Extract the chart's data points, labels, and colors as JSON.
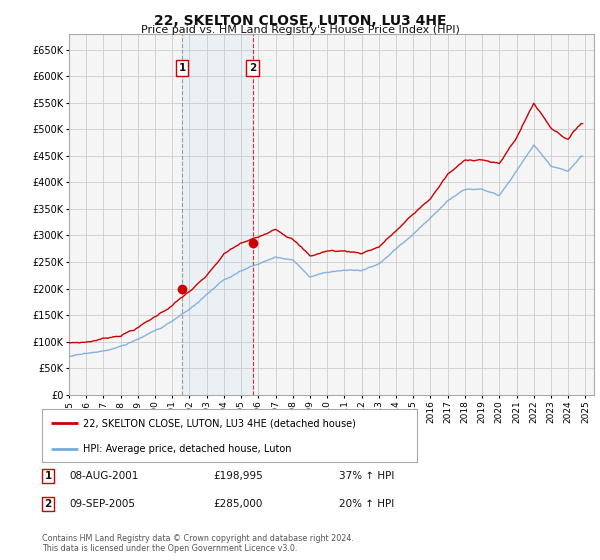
{
  "title": "22, SKELTON CLOSE, LUTON, LU3 4HE",
  "subtitle": "Price paid vs. HM Land Registry's House Price Index (HPI)",
  "hpi_color": "#7aaadd",
  "price_color": "#cc0000",
  "background_color": "#ffffff",
  "grid_color": "#cccccc",
  "plot_bg_color": "#f5f5f5",
  "ylim": [
    0,
    680000
  ],
  "yticks": [
    0,
    50000,
    100000,
    150000,
    200000,
    250000,
    300000,
    350000,
    400000,
    450000,
    500000,
    550000,
    600000,
    650000
  ],
  "ytick_labels": [
    "£0",
    "£50K",
    "£100K",
    "£150K",
    "£200K",
    "£250K",
    "£300K",
    "£350K",
    "£400K",
    "£450K",
    "£500K",
    "£550K",
    "£600K",
    "£650K"
  ],
  "xlim_start": 1995.0,
  "xlim_end": 2025.5,
  "xtick_years": [
    1995,
    1996,
    1997,
    1998,
    1999,
    2000,
    2001,
    2002,
    2003,
    2004,
    2005,
    2006,
    2007,
    2008,
    2009,
    2010,
    2011,
    2012,
    2013,
    2014,
    2015,
    2016,
    2017,
    2018,
    2019,
    2020,
    2021,
    2022,
    2023,
    2024,
    2025
  ],
  "sale1_x": 2001.58,
  "sale1_y": 198995,
  "sale1_label": "1",
  "sale1_date": "08-AUG-2001",
  "sale1_price": "£198,995",
  "sale1_hpi": "37% ↑ HPI",
  "sale2_x": 2005.67,
  "sale2_y": 285000,
  "sale2_label": "2",
  "sale2_date": "09-SEP-2005",
  "sale2_price": "£285,000",
  "sale2_hpi": "20% ↑ HPI",
  "legend_line1": "22, SKELTON CLOSE, LUTON, LU3 4HE (detached house)",
  "legend_line2": "HPI: Average price, detached house, Luton",
  "footer": "Contains HM Land Registry data © Crown copyright and database right 2024.\nThis data is licensed under the Open Government Licence v3.0."
}
